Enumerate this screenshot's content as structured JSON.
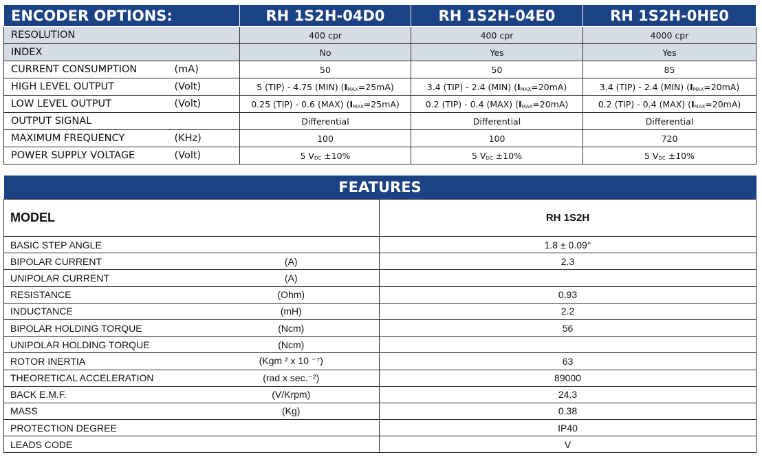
{
  "encoder": {
    "title": "ENCODER OPTIONS:",
    "models": [
      "RH 1S2H-04D0",
      "RH 1S2H-04E0",
      "RH 1S2H-0HE0"
    ],
    "header_color": "#1b4284",
    "shade_color": "#d5dce6",
    "rows": [
      {
        "label": "RESOLUTION",
        "unit": "",
        "shaded": true,
        "values": [
          [
            {
              "t": "400 cpr"
            }
          ],
          [
            {
              "t": "400 cpr"
            }
          ],
          [
            {
              "t": "4000 cpr"
            }
          ]
        ]
      },
      {
        "label": "INDEX",
        "unit": "",
        "shaded": true,
        "values": [
          [
            {
              "t": "No"
            }
          ],
          [
            {
              "t": "Yes"
            }
          ],
          [
            {
              "t": "Yes"
            }
          ]
        ]
      },
      {
        "label": "CURRENT CONSUMPTION",
        "unit": "(mA)",
        "values": [
          [
            {
              "t": "50"
            }
          ],
          [
            {
              "t": "50"
            }
          ],
          [
            {
              "t": "85"
            }
          ]
        ]
      },
      {
        "label": "HIGH LEVEL OUTPUT",
        "unit": "(Volt)",
        "values": [
          [
            {
              "t": "5 (TIP) - 4.75 (MIN) ("
            },
            {
              "b": "I"
            },
            {
              "sub": "MAX"
            },
            {
              "t": "=25mA)"
            }
          ],
          [
            {
              "t": "3.4 (TIP) - 2.4 (MIN) ("
            },
            {
              "b": "I"
            },
            {
              "sub": "MAX"
            },
            {
              "t": "=20mA)"
            }
          ],
          [
            {
              "t": "3.4 (TIP) - 2.4 (MIN) ("
            },
            {
              "b": "I"
            },
            {
              "sub": "MAX"
            },
            {
              "t": "=20mA)"
            }
          ]
        ]
      },
      {
        "label": "LOW LEVEL OUTPUT",
        "unit": "(Volt)",
        "values": [
          [
            {
              "t": "0.25 (TIP) - 0.6 (MAX) ("
            },
            {
              "b": "I"
            },
            {
              "sub": "MAX"
            },
            {
              "t": "=25mA)"
            }
          ],
          [
            {
              "t": "0.2 (TIP) - 0.4 (MAX) ("
            },
            {
              "b": "I"
            },
            {
              "sub": "MAX"
            },
            {
              "t": "=20mA)"
            }
          ],
          [
            {
              "t": "0.2 (TIP) - 0.4 (MAX) ("
            },
            {
              "b": "I"
            },
            {
              "sub": "MAX"
            },
            {
              "t": "=20mA)"
            }
          ]
        ]
      },
      {
        "label": "OUTPUT SIGNAL",
        "unit": "",
        "values": [
          [
            {
              "t": "Differential"
            }
          ],
          [
            {
              "t": "Differential"
            }
          ],
          [
            {
              "t": "Differential"
            }
          ]
        ]
      },
      {
        "label": "MAXIMUM FREQUENCY",
        "unit": "(KHz)",
        "values": [
          [
            {
              "t": "100"
            }
          ],
          [
            {
              "t": "100"
            }
          ],
          [
            {
              "t": "720"
            }
          ]
        ]
      },
      {
        "label": "POWER SUPPLY VOLTAGE",
        "unit": "(Volt)",
        "values": [
          [
            {
              "t": "5 V"
            },
            {
              "sub": "DC"
            },
            {
              "t": " ±10%"
            }
          ],
          [
            {
              "t": "5 V"
            },
            {
              "sub": "DC"
            },
            {
              "t": " ±10%"
            }
          ],
          [
            {
              "t": "5 V"
            },
            {
              "sub": "DC"
            },
            {
              "t": " ±10%"
            }
          ]
        ]
      }
    ]
  },
  "features": {
    "title": "FEATURES",
    "model_label": "MODEL",
    "model": "RH 1S2H",
    "rows": [
      {
        "label": "BASIC STEP ANGLE",
        "unit": "",
        "value": "1.8 ± 0.09°"
      },
      {
        "label": "BIPOLAR CURRENT",
        "unit": "(A)",
        "value": "2.3"
      },
      {
        "label": "UNIPOLAR CURRENT",
        "unit": "(A)",
        "value": ""
      },
      {
        "label": "RESISTANCE",
        "unit": "(Ohm)",
        "value": "0.93"
      },
      {
        "label": "INDUCTANCE",
        "unit": "(mH)",
        "value": "2.2"
      },
      {
        "label": "BIPOLAR HOLDING TORQUE",
        "unit": "(Ncm)",
        "value": "56"
      },
      {
        "label": "UNIPOLAR HOLDING TORQUE",
        "unit": "(Ncm)",
        "value": ""
      },
      {
        "label": "ROTOR INERTIA",
        "unit": "(Kgm ² x 10 ⁻⁷)",
        "value": "63"
      },
      {
        "label": "THEORETICAL ACCELERATION",
        "unit": "(rad x sec.⁻²)",
        "value": "89000"
      },
      {
        "label": "BACK E.M.F.",
        "unit": "(V/Krpm)",
        "value": "24.3"
      },
      {
        "label": "MASS",
        "unit": "(Kg)",
        "value": "0.38"
      },
      {
        "label": "PROTECTION DEGREE",
        "unit": "",
        "value": "IP40"
      },
      {
        "label": "LEADS CODE",
        "unit": "",
        "value": "V"
      }
    ]
  }
}
